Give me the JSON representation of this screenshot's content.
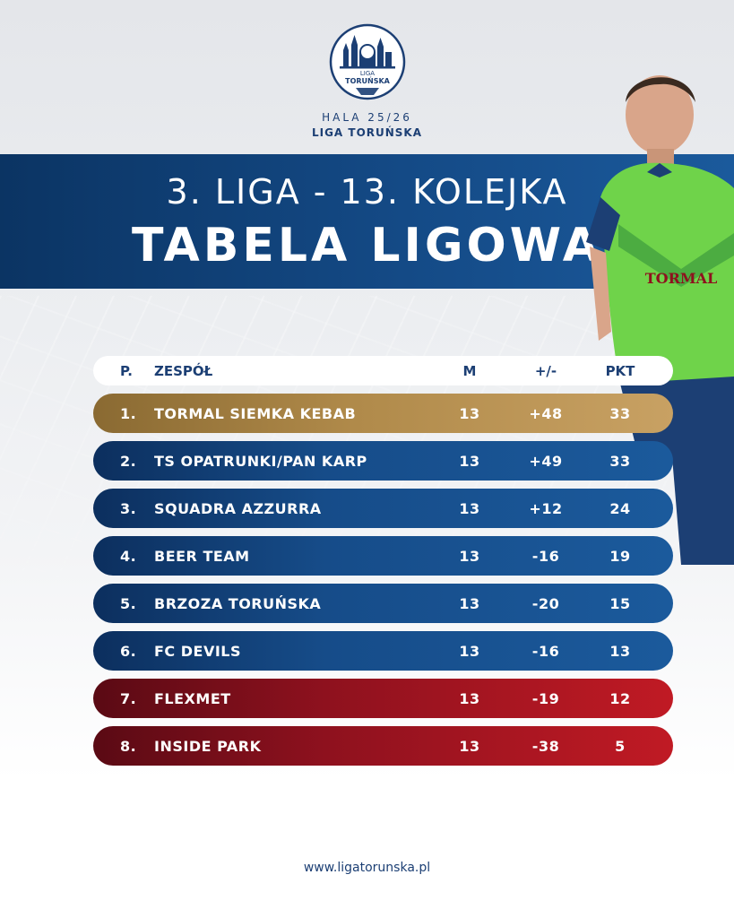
{
  "logo": {
    "line1": "LIGA",
    "line2": "TORUŃSKA"
  },
  "season": {
    "line1": "HALA 25/26",
    "line2": "LIGA TORUŃSKA"
  },
  "banner": {
    "title": "3. LIGA - 13. KOLEJKA",
    "subtitle": "TABELA LIGOWA"
  },
  "table": {
    "headers": {
      "pos": "P.",
      "team": "ZESPÓŁ",
      "m": "M",
      "diff": "+/-",
      "pkt": "PKT"
    },
    "rows": [
      {
        "pos": "1.",
        "team": "TORMAL SIEMKA KEBAB",
        "m": "13",
        "diff": "+48",
        "pkt": "33",
        "style": "gold"
      },
      {
        "pos": "2.",
        "team": "TS OPATRUNKI/PAN KARP",
        "m": "13",
        "diff": "+49",
        "pkt": "33",
        "style": "blue"
      },
      {
        "pos": "3.",
        "team": "SQUADRA AZZURRA",
        "m": "13",
        "diff": "+12",
        "pkt": "24",
        "style": "blue"
      },
      {
        "pos": "4.",
        "team": "BEER TEAM",
        "m": "13",
        "diff": "-16",
        "pkt": "19",
        "style": "blue"
      },
      {
        "pos": "5.",
        "team": "BRZOZA TORUŃSKA",
        "m": "13",
        "diff": "-20",
        "pkt": "15",
        "style": "blue"
      },
      {
        "pos": "6.",
        "team": "FC DEVILS",
        "m": "13",
        "diff": "-16",
        "pkt": "13",
        "style": "blue"
      },
      {
        "pos": "7.",
        "team": "FLEXMET",
        "m": "13",
        "diff": "-19",
        "pkt": "12",
        "style": "red"
      },
      {
        "pos": "8.",
        "team": "INSIDE PARK",
        "m": "13",
        "diff": "-38",
        "pkt": "5",
        "style": "red"
      }
    ]
  },
  "player_shirt_text": "TORMAL",
  "footer": {
    "url": "www.ligatorunska.pl"
  },
  "colors": {
    "navy": "#1c3f74",
    "gold": "#b08a4a",
    "blue": "#164c89",
    "red": "#8e111e"
  }
}
